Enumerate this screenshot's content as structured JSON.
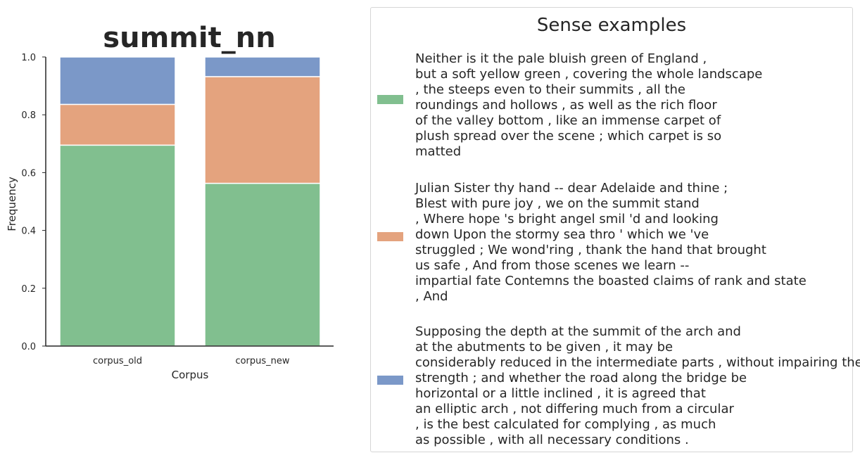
{
  "chart_data": {
    "type": "bar",
    "stacked": true,
    "title": "summit_nn",
    "xlabel": "Corpus",
    "ylabel": "Frequency",
    "ylim": [
      0,
      1.0
    ],
    "yticks": [
      "0.0",
      "0.2",
      "0.4",
      "0.6",
      "0.8",
      "1.0"
    ],
    "categories": [
      "corpus_old",
      "corpus_new"
    ],
    "series": [
      {
        "color": "#81bf8f",
        "values": [
          0.695,
          0.563
        ]
      },
      {
        "color": "#e4a37e",
        "values": [
          0.141,
          0.369
        ]
      },
      {
        "color": "#7b98c8",
        "values": [
          0.164,
          0.068
        ]
      }
    ],
    "grid": false
  },
  "legend": {
    "title": "Sense examples",
    "entries": [
      {
        "color": "#81bf8f",
        "text": "Neither is it the pale bluish green of England ,\nbut a soft yellow green , covering the whole landscape\n, the steeps even to their summits , all the\nroundings and hollows , as well as the rich floor\nof the valley bottom , like an immense carpet of\nplush spread over the scene ; which carpet is so\nmatted"
      },
      {
        "color": "#e4a37e",
        "text": "Julian Sister thy hand -- dear Adelaide and thine ;\nBlest with pure joy , we on the summit stand\n, Where hope 's bright angel smil 'd and looking\ndown Upon the stormy sea thro ' which we 've\nstruggled ; We wond'ring , thank the hand that brought\nus safe , And from those scenes we learn --\nimpartial fate Contemns the boasted claims of rank and state\n, And"
      },
      {
        "color": "#7b98c8",
        "text": "Supposing the depth at the summit of the arch and\nat the abutments to be given , it may be\nconsiderably reduced in the intermediate parts , without impairing the\nstrength ; and whether the road along the bridge be\nhorizontal or a little inclined , it is agreed that\nan elliptic arch , not differing much from a circular\n, is the best calculated for complying , as much\nas possible , with all necessary conditions ."
      }
    ]
  }
}
